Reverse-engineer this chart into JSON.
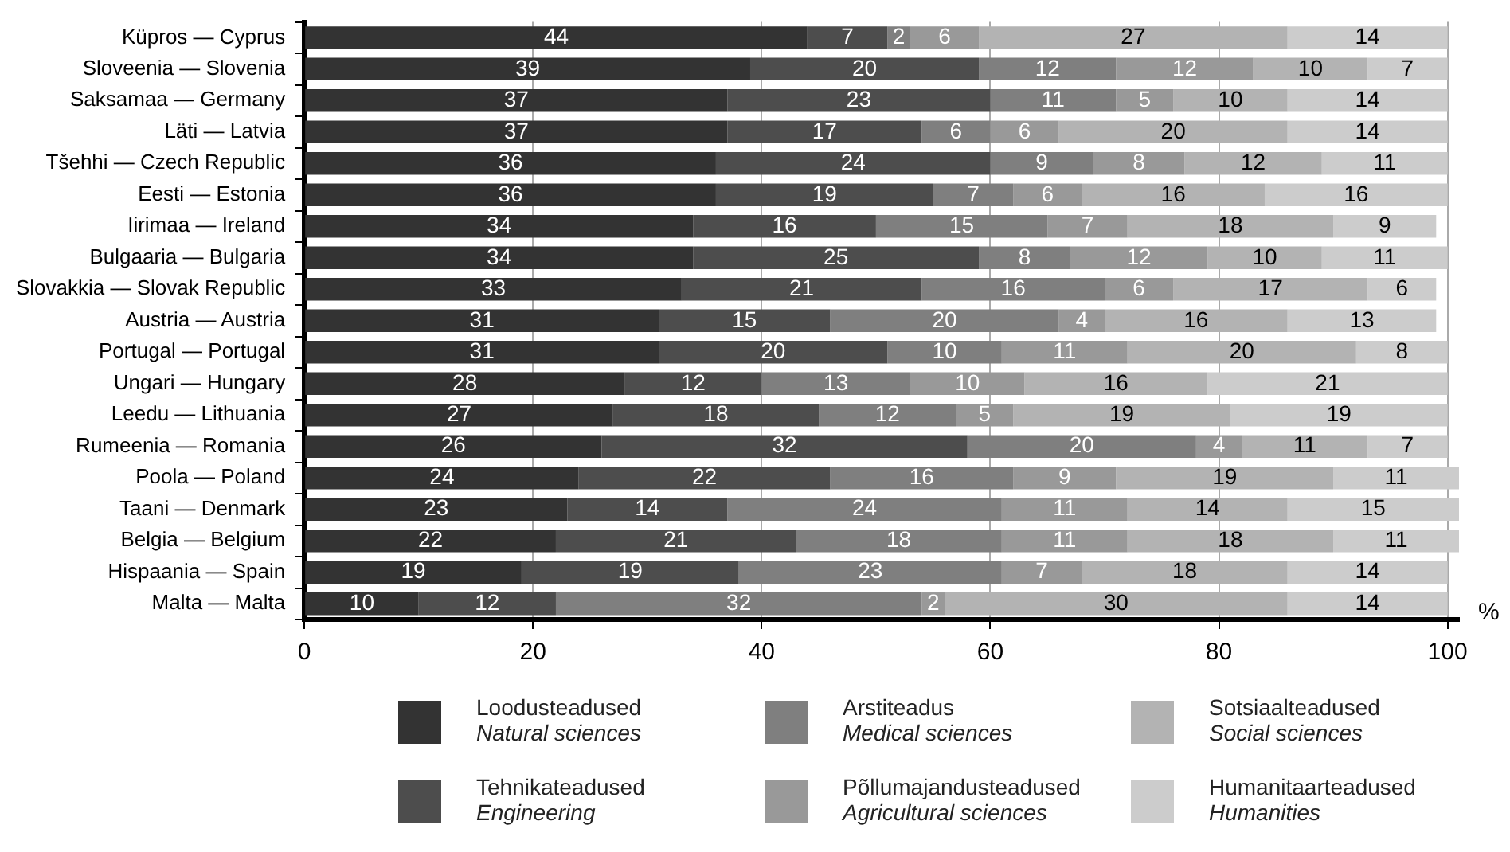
{
  "chart_data": {
    "type": "bar",
    "orientation": "horizontal",
    "stacked": true,
    "data_labels": true,
    "grid": "x",
    "legend": "bottom",
    "xlabel": "%",
    "categories": [
      "Küpros — Cyprus",
      "Sloveenia — Slovenia",
      "Saksamaa — Germany",
      "Läti — Latvia",
      "Tšehhi — Czech Republic",
      "Eesti — Estonia",
      "Iirimaa — Ireland",
      "Bulgaaria — Bulgaria",
      "Slovakkia — Slovak Republic",
      "Austria — Austria",
      "Portugal — Portugal",
      "Ungari — Hungary",
      "Leedu — Lithuania",
      "Rumeenia — Romania",
      "Poola — Poland",
      "Taani — Denmark",
      "Belgia — Belgium",
      "Hispaania — Spain",
      "Malta — Malta"
    ],
    "xlim": [
      0,
      101
    ],
    "xticks": [
      0,
      20,
      40,
      60,
      80,
      100
    ],
    "series": [
      {
        "name": "Loodusteadused\nNatural sciences",
        "color": "#333333",
        "values": [
          44,
          39,
          37,
          37,
          36,
          36,
          34,
          34,
          33,
          31,
          31,
          28,
          27,
          26,
          24,
          23,
          22,
          19,
          10
        ]
      },
      {
        "name": "Tehnikateadused\nEngineering",
        "color": "#4d4d4d",
        "values": [
          7,
          20,
          23,
          17,
          24,
          19,
          16,
          25,
          21,
          15,
          20,
          12,
          18,
          32,
          22,
          14,
          21,
          19,
          12
        ]
      },
      {
        "name": "Arstiteadus\nMedical sciences",
        "color": "#7f7f7f",
        "values": [
          2,
          12,
          11,
          6,
          9,
          7,
          15,
          8,
          16,
          20,
          10,
          13,
          12,
          20,
          16,
          24,
          18,
          23,
          32
        ]
      },
      {
        "name": "Põllumajandusteadused\nAgricultural sciences",
        "color": "#999999",
        "values": [
          6,
          12,
          5,
          6,
          8,
          6,
          7,
          12,
          6,
          4,
          11,
          10,
          5,
          4,
          9,
          11,
          11,
          7,
          2
        ]
      },
      {
        "name": "Sotsiaalteadused\nSocial sciences",
        "color": "#b3b3b3",
        "values": [
          27,
          10,
          10,
          20,
          12,
          16,
          18,
          10,
          17,
          16,
          20,
          16,
          19,
          11,
          19,
          14,
          18,
          18,
          30
        ]
      },
      {
        "name": "Humanitaarteadused\nHumanities",
        "color": "#cccccc",
        "values": [
          14,
          7,
          14,
          14,
          11,
          16,
          9,
          11,
          6,
          13,
          8,
          21,
          19,
          7,
          11,
          15,
          11,
          14,
          14
        ]
      }
    ]
  }
}
